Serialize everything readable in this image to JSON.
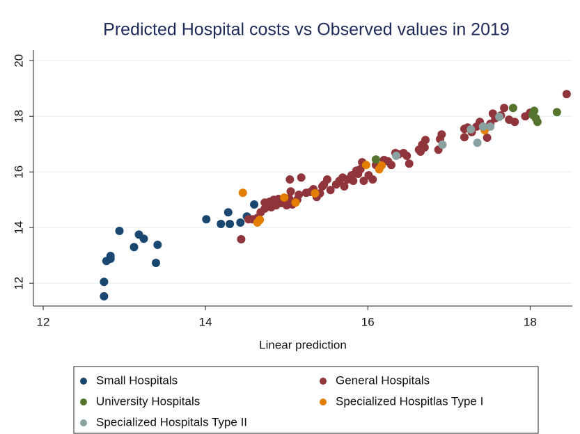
{
  "chart_data": {
    "type": "scatter",
    "title": "Predicted Hospital costs vs Observed values in 2019",
    "x_label": "Linear prediction",
    "xlim": [
      11.88,
      18.52
    ],
    "ylim": [
      11.18,
      20.38
    ],
    "xticks": [
      12,
      14,
      16,
      18
    ],
    "yticks": [
      12,
      14,
      16,
      18,
      20
    ],
    "grid": true,
    "legend": "bottom",
    "series": [
      {
        "name": "Small Hospitals",
        "color": "#1a476f",
        "x": [
          12.75,
          12.75,
          12.78,
          12.83,
          12.83,
          12.94,
          13.12,
          13.18,
          13.24,
          13.41,
          13.39,
          14.01,
          14.19,
          14.28,
          14.3,
          14.43,
          14.51,
          14.6
        ],
        "values": [
          11.53,
          12.05,
          12.8,
          12.88,
          12.98,
          13.88,
          13.3,
          13.75,
          13.6,
          13.38,
          12.73,
          14.3,
          14.13,
          14.55,
          14.13,
          14.18,
          14.4,
          14.83
        ]
      },
      {
        "name": "General Hospitals",
        "color": "#90353b",
        "x": [
          14.44,
          14.53,
          14.58,
          14.64,
          14.68,
          14.73,
          14.73,
          14.79,
          14.81,
          14.84,
          14.87,
          14.9,
          14.93,
          14.97,
          15.0,
          15.03,
          15.07,
          15.13,
          15.15,
          15.05,
          15.04,
          15.18,
          15.24,
          15.29,
          15.33,
          15.37,
          15.41,
          15.44,
          15.46,
          15.5,
          15.54,
          15.61,
          15.65,
          15.69,
          15.71,
          15.75,
          15.8,
          15.82,
          15.86,
          15.88,
          15.91,
          15.93,
          15.95,
          16.01,
          16.06,
          16.1,
          16.14,
          16.2,
          16.25,
          16.29,
          16.34,
          16.38,
          16.44,
          16.48,
          16.51,
          16.63,
          16.65,
          16.67,
          16.7,
          16.71,
          16.87,
          16.89,
          16.91,
          17.19,
          17.19,
          17.23,
          17.28,
          17.34,
          17.38,
          17.43,
          17.47,
          17.51,
          17.54,
          17.57,
          17.64,
          17.68,
          17.74,
          17.81,
          17.94,
          18.0,
          18.45
        ],
        "values": [
          13.58,
          14.3,
          14.3,
          14.35,
          14.55,
          14.68,
          14.9,
          14.93,
          14.73,
          15.0,
          14.8,
          15.03,
          14.88,
          14.93,
          14.8,
          15.05,
          14.83,
          15.0,
          15.18,
          15.3,
          15.73,
          15.8,
          15.25,
          15.28,
          15.38,
          15.1,
          15.23,
          15.48,
          15.55,
          15.73,
          15.35,
          15.55,
          15.68,
          15.8,
          15.48,
          15.73,
          15.88,
          15.68,
          16.05,
          15.93,
          16.1,
          16.35,
          15.68,
          15.88,
          15.73,
          16.25,
          16.1,
          16.43,
          16.38,
          16.25,
          16.68,
          16.63,
          16.68,
          16.58,
          16.3,
          16.8,
          16.73,
          16.98,
          16.88,
          17.15,
          16.8,
          17.18,
          17.35,
          17.25,
          17.55,
          17.6,
          17.43,
          17.63,
          17.8,
          17.58,
          17.23,
          17.73,
          18.1,
          17.93,
          18.03,
          18.3,
          17.88,
          17.8,
          18.0,
          18.13,
          18.8
        ]
      },
      {
        "name": "University Hospitals",
        "color": "#55752f",
        "x": [
          16.1,
          17.44,
          17.79,
          18.03,
          18.05,
          18.07,
          18.09,
          18.33
        ],
        "values": [
          16.45,
          17.58,
          18.3,
          18.05,
          18.2,
          17.93,
          17.8,
          18.15
        ]
      },
      {
        "name": "Specialized Hospitlas Type I",
        "color": "#e37e00",
        "x": [
          14.46,
          14.64,
          14.67,
          14.97,
          15.11,
          15.35,
          15.98,
          16.14,
          16.17,
          17.44
        ],
        "values": [
          15.25,
          14.18,
          14.28,
          15.08,
          14.9,
          15.23,
          16.25,
          16.1,
          16.23,
          17.5
        ]
      },
      {
        "name": "Specialized Hospitals Type II",
        "color": "#8aa1a1",
        "x": [
          16.35,
          16.92,
          17.27,
          17.35,
          17.42,
          17.51,
          17.62
        ],
        "values": [
          16.58,
          16.98,
          17.53,
          17.05,
          17.63,
          17.63,
          17.98
        ]
      }
    ]
  }
}
